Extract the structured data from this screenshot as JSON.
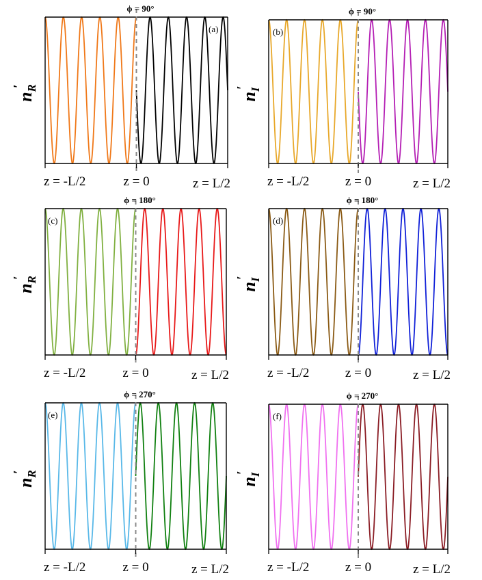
{
  "chart_data": [
    {
      "type": "line",
      "panel_label": "(a)",
      "phi_label": "ϕ = 90°",
      "ylabel_main": "n",
      "ylabel_sub": "R",
      "ylabel_prime": "′",
      "xtick_labels": [
        "z = -L/2",
        "z = 0",
        "z = L/2"
      ],
      "xlim": [
        "-L/2",
        "L/2"
      ],
      "cycles_per_half": 5,
      "phase_deg": 90,
      "series": [
        {
          "segment": "z < 0",
          "color": "#f07818"
        },
        {
          "segment": "z > 0",
          "color": "#000000"
        }
      ]
    },
    {
      "type": "line",
      "panel_label": "(b)",
      "phi_label": "ϕ = 90°",
      "ylabel_main": "n",
      "ylabel_sub": "I",
      "ylabel_prime": "′",
      "xtick_labels": [
        "z = -L/2",
        "z = 0",
        "z = L/2"
      ],
      "xlim": [
        "-L/2",
        "L/2"
      ],
      "cycles_per_half": 5,
      "phase_deg": 90,
      "series": [
        {
          "segment": "z < 0",
          "color": "#e8a82a"
        },
        {
          "segment": "z > 0",
          "color": "#b41eb4"
        }
      ]
    },
    {
      "type": "line",
      "panel_label": "(c)",
      "phi_label": "ϕ = 180°",
      "ylabel_main": "n",
      "ylabel_sub": "R",
      "ylabel_prime": "′",
      "xtick_labels": [
        "z = -L/2",
        "z = 0",
        "z = L/2"
      ],
      "xlim": [
        "-L/2",
        "L/2"
      ],
      "cycles_per_half": 5,
      "phase_deg": 180,
      "series": [
        {
          "segment": "z < 0",
          "color": "#80b040"
        },
        {
          "segment": "z > 0",
          "color": "#e81818"
        }
      ]
    },
    {
      "type": "line",
      "panel_label": "(d)",
      "phi_label": "ϕ = 180°",
      "ylabel_main": "n",
      "ylabel_sub": "I",
      "ylabel_prime": "′",
      "xtick_labels": [
        "z = -L/2",
        "z = 0",
        "z = L/2"
      ],
      "xlim": [
        "-L/2",
        "L/2"
      ],
      "cycles_per_half": 5,
      "phase_deg": 180,
      "series": [
        {
          "segment": "z < 0",
          "color": "#8a5a14"
        },
        {
          "segment": "z > 0",
          "color": "#1020d8"
        }
      ]
    },
    {
      "type": "line",
      "panel_label": "(e)",
      "phi_label": "ϕ = 270°",
      "ylabel_main": "n",
      "ylabel_sub": "R",
      "ylabel_prime": "′",
      "xtick_labels": [
        "z = -L/2",
        "z = 0",
        "z = L/2"
      ],
      "xlim": [
        "-L/2",
        "L/2"
      ],
      "cycles_per_half": 5,
      "phase_deg": 270,
      "series": [
        {
          "segment": "z < 0",
          "color": "#58b8e8"
        },
        {
          "segment": "z > 0",
          "color": "#108010"
        }
      ]
    },
    {
      "type": "line",
      "panel_label": "(f)",
      "phi_label": "ϕ = 270°",
      "ylabel_main": "n",
      "ylabel_sub": "I",
      "ylabel_prime": "′",
      "xtick_labels": [
        "z = -L/2",
        "z = 0",
        "z = L/2"
      ],
      "xlim": [
        "-L/2",
        "L/2"
      ],
      "cycles_per_half": 5,
      "phase_deg": 270,
      "series": [
        {
          "segment": "z < 0",
          "color": "#f070f0"
        },
        {
          "segment": "z > 0",
          "color": "#8a1c24"
        }
      ]
    }
  ]
}
